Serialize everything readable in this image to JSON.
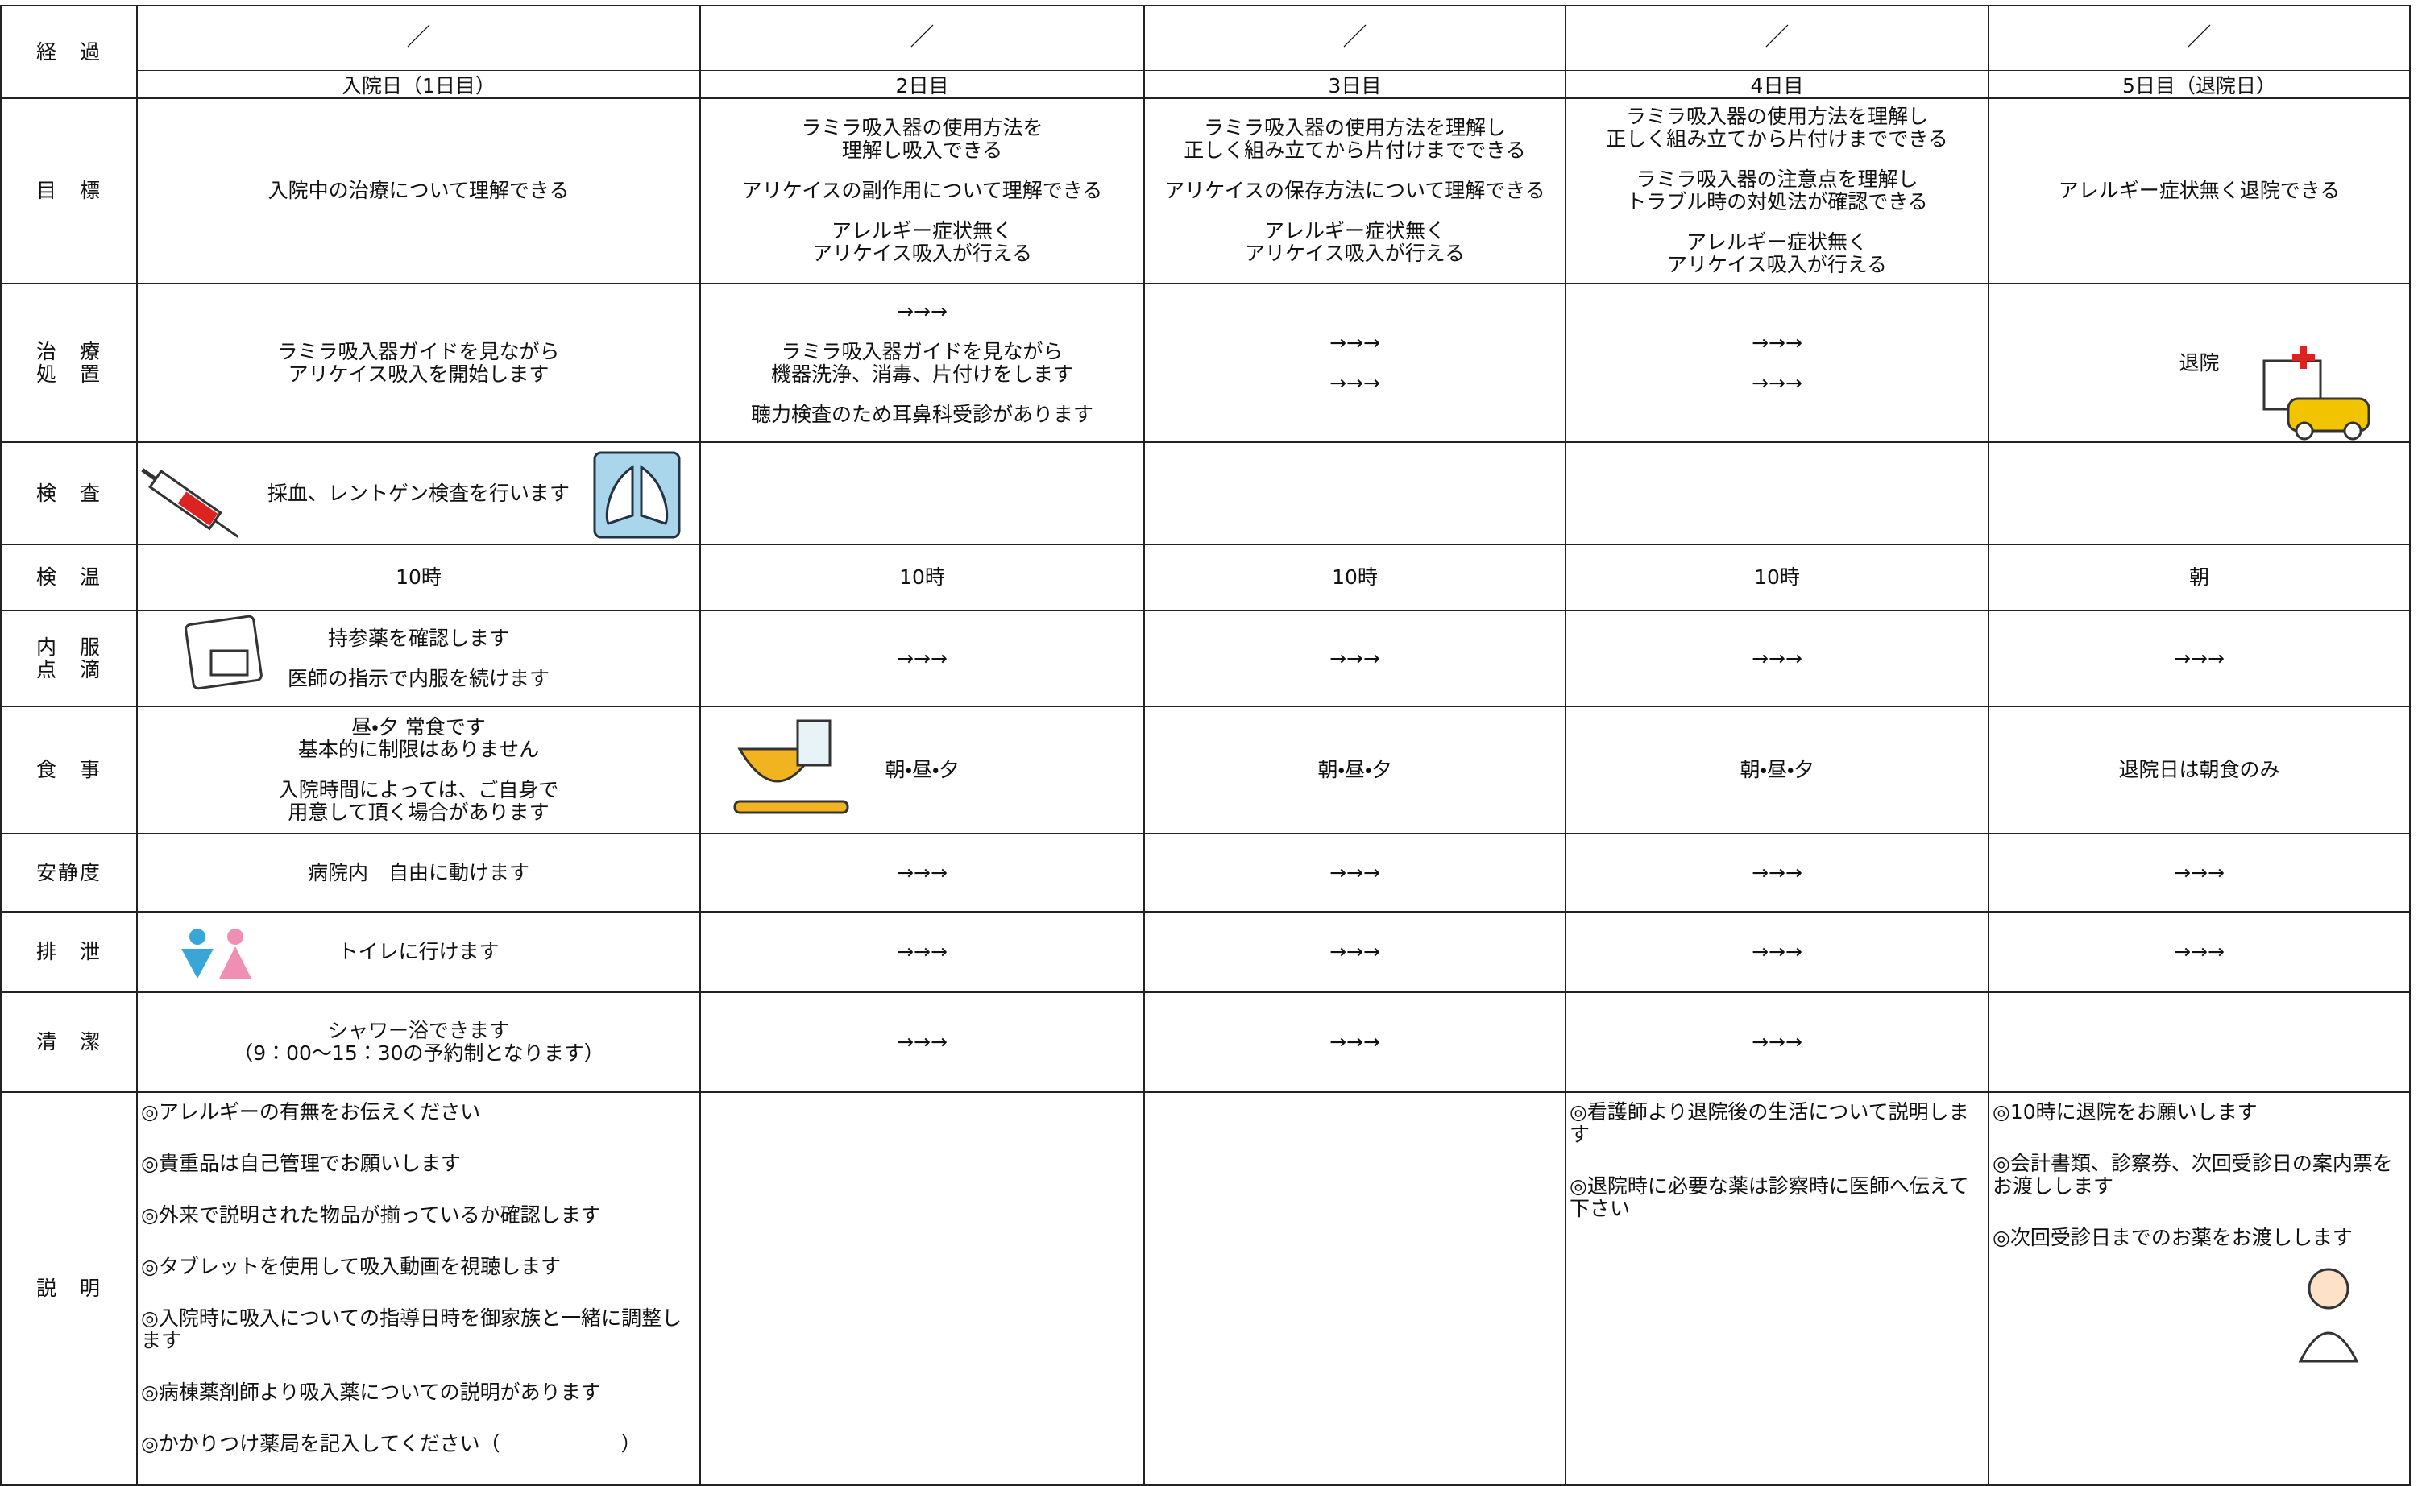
{
  "header": {
    "label": "経　過",
    "dates": [
      "／",
      "／",
      "／",
      "／",
      "／"
    ],
    "days": [
      "入院日（1日目）",
      "2日目",
      "3日目",
      "4日目",
      "5日目（退院日）"
    ]
  },
  "rows": [
    {
      "label": "目　標",
      "cells": [
        [
          "入院中の治療について理解できる"
        ],
        [
          "ラミラ吸入器の使用方法を\n理解し吸入できる",
          "アリケイスの副作用について理解できる",
          "アレルギー症状無く\nアリケイス吸入が行える"
        ],
        [
          "ラミラ吸入器の使用方法を理解し\n正しく組み立てから片付けまでできる",
          "アリケイスの保存方法について理解できる",
          "アレルギー症状無く\nアリケイス吸入が行える"
        ],
        [
          "ラミラ吸入器の使用方法を理解し\n正しく組み立てから片付けまでできる",
          "ラミラ吸入器の注意点を理解し\nトラブル時の対処法が確認できる",
          "アレルギー症状無く\nアリケイス吸入が行える"
        ],
        [
          "アレルギー症状無く退院できる"
        ]
      ]
    },
    {
      "label": "治　療\n処　置",
      "cells": [
        [
          "ラミラ吸入器ガイドを見ながら\nアリケイス吸入を開始します"
        ],
        [
          "→→→",
          "ラミラ吸入器ガイドを見ながら\n機器洗浄、消毒、片付けをします",
          "聴力検査のため耳鼻科受診があります"
        ],
        [
          "→→→",
          "→→→"
        ],
        [
          "→→→",
          "→→→"
        ],
        [
          "退院"
        ]
      ]
    },
    {
      "label": "検　査",
      "cells": [
        [
          "採血、レントゲン検査を行います"
        ],
        [],
        [],
        [],
        []
      ]
    },
    {
      "label": "検　温",
      "cells": [
        [
          "10時"
        ],
        [
          "10時"
        ],
        [
          "10時"
        ],
        [
          "10時"
        ],
        [
          "朝"
        ]
      ]
    },
    {
      "label": "内　服\n点　滴",
      "cells": [
        [
          "持参薬を確認します",
          "医師の指示で内服を続けます"
        ],
        [
          "→→→"
        ],
        [
          "→→→"
        ],
        [
          "→→→"
        ],
        [
          "→→→"
        ]
      ]
    },
    {
      "label": "食　事",
      "cells": [
        [
          "昼・夕 常食です\n基本的に制限はありません",
          "入院時間によっては、ご自身で\n用意して頂く場合があります"
        ],
        [
          "朝・昼・夕"
        ],
        [
          "朝・昼・夕"
        ],
        [
          "朝・昼・夕"
        ],
        [
          "退院日は朝食のみ"
        ]
      ]
    },
    {
      "label": "安静度",
      "cells": [
        [
          "病院内　自由に動けます"
        ],
        [
          "→→→"
        ],
        [
          "→→→"
        ],
        [
          "→→→"
        ],
        [
          "→→→"
        ]
      ]
    },
    {
      "label": "排　泄",
      "cells": [
        [
          "トイレに行けます"
        ],
        [
          "→→→"
        ],
        [
          "→→→"
        ],
        [
          "→→→"
        ],
        [
          "→→→"
        ]
      ]
    },
    {
      "label": "清　潔",
      "cells": [
        [
          "シャワー浴できます\n（9：00〜15：30の予約制となります）"
        ],
        [
          "→→→"
        ],
        [
          "→→→"
        ],
        [
          "→→→"
        ],
        []
      ]
    },
    {
      "label": "説　明",
      "cells": [
        [
          "◎アレルギーの有無をお伝えください",
          "◎貴重品は自己管理でお願いします",
          "◎外来で説明された物品が揃っているか確認します",
          "◎タブレットを使用して吸入動画を視聴します",
          "◎入院時に吸入についての指導日時を御家族と一緒に調整します",
          "◎病棟薬剤師より吸入薬についての説明があります",
          "◎かかりつけ薬局を記入してください（　　　　　　）"
        ],
        [],
        [],
        [
          "◎看護師より退院後の生活について説明します",
          "◎退院時に必要な薬は診察時に医師へ伝えて下さい"
        ],
        [
          "◎10時に退院をお願いします",
          "◎会計書類、診察券、次回受診日の案内票をお渡しします",
          "◎次回受診日までのお薬をお渡しします"
        ]
      ]
    }
  ]
}
